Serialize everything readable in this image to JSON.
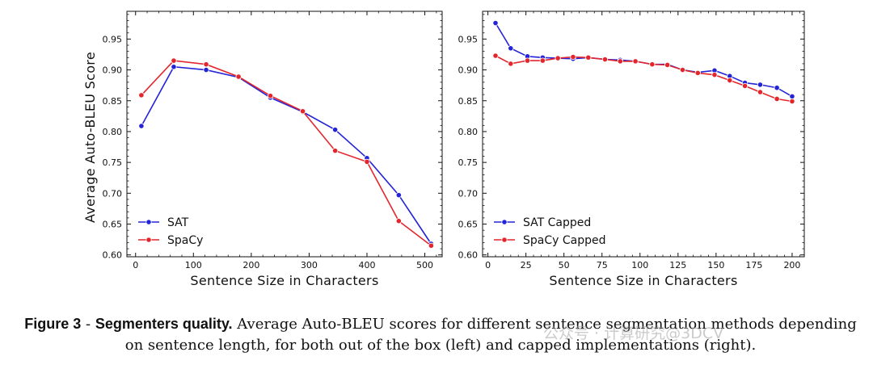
{
  "chart_data": [
    {
      "type": "line",
      "panel": "left",
      "title": "",
      "xlabel": "Sentence Size in Characters",
      "ylabel": "Average Auto-BLEU Score",
      "xlim": [
        -15,
        530
      ],
      "ylim": [
        0.597,
        0.995
      ],
      "xticks": [
        0,
        100,
        200,
        300,
        400,
        500
      ],
      "xtick_labels": [
        "0",
        "100",
        "200",
        "300",
        "400",
        "500"
      ],
      "yticks": [
        0.6,
        0.65,
        0.7,
        0.75,
        0.8,
        0.85,
        0.9,
        0.95
      ],
      "ytick_labels": [
        "0.60",
        "0.65",
        "0.70",
        "0.75",
        "0.80",
        "0.85",
        "0.90",
        "0.95"
      ],
      "legend": "lower-left",
      "grid": false,
      "series": [
        {
          "name": "SAT",
          "color": "#2323d8",
          "x": [
            10,
            66,
            122,
            178,
            233,
            289,
            345,
            400,
            455,
            511
          ],
          "y": [
            0.809,
            0.905,
            0.9,
            0.888,
            0.855,
            0.832,
            0.803,
            0.757,
            0.697,
            0.618
          ]
        },
        {
          "name": "SpaCy",
          "color": "#e3262c",
          "x": [
            10,
            66,
            122,
            178,
            233,
            289,
            345,
            400,
            455,
            511
          ],
          "y": [
            0.859,
            0.915,
            0.909,
            0.889,
            0.858,
            0.833,
            0.769,
            0.751,
            0.655,
            0.615
          ]
        }
      ]
    },
    {
      "type": "line",
      "panel": "right",
      "title": "",
      "xlabel": "Sentence Size in Characters",
      "ylabel": "",
      "xlim": [
        -3.5,
        208
      ],
      "ylim": [
        0.597,
        0.995
      ],
      "xticks": [
        0,
        25,
        50,
        75,
        100,
        125,
        150,
        175,
        200
      ],
      "xtick_labels": [
        "0",
        "25",
        "50",
        "75",
        "100",
        "125",
        "150",
        "175",
        "200"
      ],
      "yticks": [
        0.6,
        0.65,
        0.7,
        0.75,
        0.8,
        0.85,
        0.9,
        0.95
      ],
      "ytick_labels": [
        "0.60",
        "0.65",
        "0.70",
        "0.75",
        "0.80",
        "0.85",
        "0.90",
        "0.95"
      ],
      "legend": "lower-left",
      "grid": false,
      "series": [
        {
          "name": "SAT Capped",
          "color": "#2323d8",
          "x": [
            5,
            15,
            26,
            36,
            46,
            56,
            66,
            77,
            87,
            97,
            108,
            118,
            128,
            138,
            149,
            159,
            169,
            179,
            190,
            200
          ],
          "y": [
            0.976,
            0.935,
            0.922,
            0.92,
            0.919,
            0.918,
            0.92,
            0.917,
            0.916,
            0.914,
            0.909,
            0.909,
            0.9,
            0.896,
            0.899,
            0.89,
            0.879,
            0.876,
            0.871,
            0.857
          ]
        },
        {
          "name": "SpaCy Capped",
          "color": "#e3262c",
          "x": [
            5,
            15,
            26,
            36,
            46,
            56,
            66,
            77,
            87,
            97,
            108,
            118,
            128,
            138,
            149,
            159,
            169,
            179,
            190,
            200
          ],
          "y": [
            0.923,
            0.91,
            0.915,
            0.915,
            0.919,
            0.921,
            0.92,
            0.917,
            0.914,
            0.914,
            0.909,
            0.908,
            0.9,
            0.895,
            0.892,
            0.883,
            0.874,
            0.864,
            0.853,
            0.849
          ]
        }
      ]
    }
  ],
  "caption": {
    "figure_number": "Figure 3",
    "separator": " - ",
    "title": "Segmenters quality.",
    "text": " Average Auto-BLEU scores for different sentence segmentation methods depending on sentence length, for both out of the box (left) and capped implementations (right)."
  },
  "watermark": "公众号 · 计算研究@3DCV"
}
